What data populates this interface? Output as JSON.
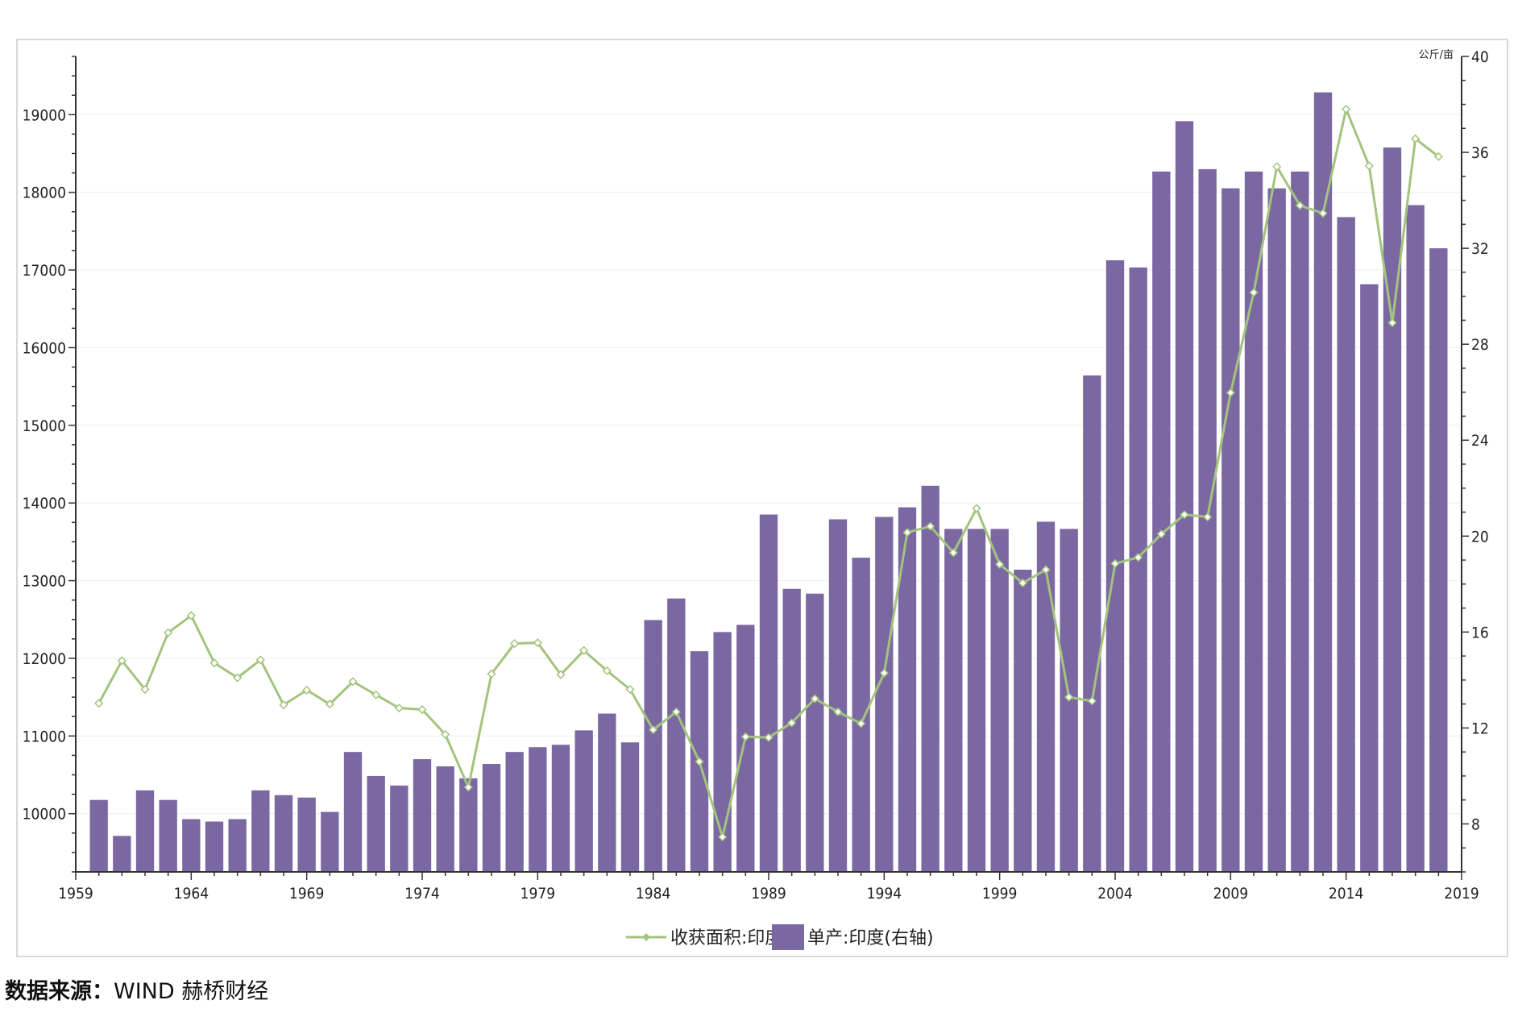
{
  "source": {
    "label": "数据来源：",
    "text": "WIND  赫桥财经"
  },
  "colors": {
    "bar": "#7b68a3",
    "line": "#a3c47d",
    "grid": "#efefef",
    "axis": "#333333"
  },
  "chart_data": {
    "type": "bar",
    "title": "",
    "x_axis": {
      "min": 1959,
      "max": 2019,
      "ticks": [
        1959,
        1964,
        1969,
        1974,
        1979,
        1984,
        1989,
        1994,
        1999,
        2004,
        2009,
        2014,
        2019
      ]
    },
    "y_left": {
      "label": "",
      "min": 9250,
      "max": 19750,
      "ticks": [
        10000,
        11000,
        12000,
        13000,
        14000,
        15000,
        16000,
        17000,
        18000,
        19000
      ]
    },
    "y_right": {
      "label": "公斤/亩",
      "min": 6,
      "max": 40,
      "ticks": [
        8,
        12,
        16,
        20,
        24,
        28,
        32,
        36,
        40
      ]
    },
    "grid": true,
    "legend_position": "bottom",
    "years": [
      1960,
      1961,
      1962,
      1963,
      1964,
      1965,
      1966,
      1967,
      1968,
      1969,
      1970,
      1971,
      1972,
      1973,
      1974,
      1975,
      1976,
      1977,
      1978,
      1979,
      1980,
      1981,
      1982,
      1983,
      1984,
      1985,
      1986,
      1987,
      1988,
      1989,
      1990,
      1991,
      1992,
      1993,
      1994,
      1995,
      1996,
      1997,
      1998,
      1999,
      2000,
      2001,
      2002,
      2003,
      2004,
      2005,
      2006,
      2007,
      2008,
      2009,
      2010,
      2011,
      2012,
      2013,
      2014,
      2015,
      2016,
      2017,
      2018
    ],
    "series": [
      {
        "name": "收获面积:印度",
        "type": "line",
        "axis": "left",
        "values": [
          11420,
          11970,
          11600,
          12330,
          12550,
          11940,
          11750,
          11980,
          11400,
          11590,
          11410,
          11700,
          11530,
          11360,
          11340,
          11020,
          10340,
          11800,
          12190,
          12200,
          11790,
          12100,
          11840,
          11600,
          11080,
          11310,
          10670,
          9700,
          10990,
          10980,
          11170,
          11480,
          11310,
          11160,
          11810,
          13620,
          13700,
          13360,
          13930,
          13210,
          12970,
          13140,
          11500,
          11450,
          13220,
          13300,
          13600,
          13850,
          13820,
          15420,
          16710,
          18330,
          17830,
          17730,
          19070,
          18340,
          16320,
          18690,
          18460
        ]
      },
      {
        "name": "单产:印度(右轴)",
        "type": "bar",
        "axis": "right",
        "values": [
          9.0,
          7.5,
          9.4,
          9.0,
          8.2,
          8.1,
          8.2,
          9.4,
          9.2,
          9.1,
          8.5,
          11.0,
          10.0,
          9.6,
          10.7,
          10.4,
          9.9,
          10.5,
          11.0,
          11.2,
          11.3,
          11.9,
          12.6,
          11.4,
          16.5,
          17.4,
          15.2,
          16.0,
          16.3,
          20.9,
          17.8,
          17.6,
          20.7,
          19.1,
          20.8,
          21.2,
          22.1,
          20.3,
          20.3,
          20.3,
          18.6,
          20.6,
          20.3,
          26.7,
          31.5,
          31.2,
          35.2,
          37.3,
          35.3,
          34.5,
          35.2,
          34.5,
          35.2,
          38.5,
          33.3,
          30.5,
          36.2,
          33.8,
          32.0
        ]
      }
    ]
  }
}
